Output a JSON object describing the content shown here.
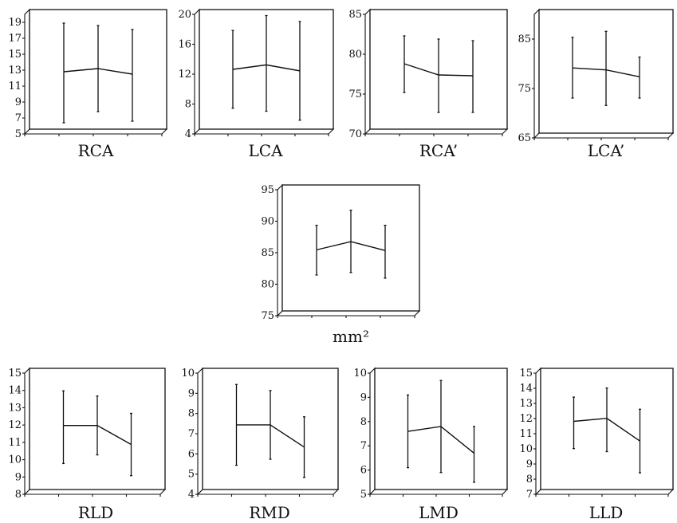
{
  "chart_data": [
    {
      "type": "line",
      "xlabel": "RCA",
      "yticks": [
        5,
        7,
        9,
        11,
        13,
        15,
        17,
        19
      ],
      "ylim": [
        5,
        20
      ],
      "x": [
        1,
        2,
        3
      ],
      "series": [
        {
          "values": [
            12.2,
            12.6,
            11.9
          ],
          "lower": [
            5.8,
            7.2,
            6.0
          ],
          "upper": [
            18.3,
            18.0,
            17.5
          ]
        }
      ]
    },
    {
      "type": "line",
      "xlabel": "LCA",
      "yticks": [
        4,
        8,
        12,
        16,
        20
      ],
      "ylim": [
        4,
        20
      ],
      "x": [
        1,
        2,
        3
      ],
      "series": [
        {
          "values": [
            12.0,
            12.6,
            11.8
          ],
          "lower": [
            6.8,
            6.4,
            5.2
          ],
          "upper": [
            17.2,
            19.2,
            18.4
          ]
        }
      ]
    },
    {
      "type": "line",
      "xlabel": "RCA’",
      "yticks": [
        70,
        75,
        80,
        85
      ],
      "ylim": [
        70,
        85
      ],
      "x": [
        1,
        2,
        3
      ],
      "series": [
        {
          "values": [
            78.2,
            76.8,
            76.7
          ],
          "lower": [
            74.6,
            72.1,
            72.1
          ],
          "upper": [
            81.7,
            81.3,
            81.1
          ]
        }
      ]
    },
    {
      "type": "line",
      "xlabel": "LCA’",
      "yticks": [
        65,
        75,
        85
      ],
      "ylim": [
        65,
        90
      ],
      "x": [
        1,
        2,
        3
      ],
      "series": [
        {
          "values": [
            78.2,
            77.8,
            76.4
          ],
          "lower": [
            72.1,
            70.6,
            72.1
          ],
          "upper": [
            84.4,
            85.6,
            80.4
          ]
        }
      ]
    },
    {
      "type": "line",
      "xlabel": "mm²",
      "yticks": [
        75,
        80,
        85,
        90,
        95
      ],
      "ylim": [
        75,
        95
      ],
      "x": [
        1,
        2,
        3
      ],
      "series": [
        {
          "values": [
            84.7,
            86.0,
            84.6
          ],
          "lower": [
            80.7,
            81.1,
            80.2
          ],
          "upper": [
            88.6,
            91.0,
            88.6
          ]
        }
      ]
    },
    {
      "type": "line",
      "xlabel": "RLD",
      "yticks": [
        8,
        9,
        10,
        11,
        12,
        13,
        14,
        15
      ],
      "ylim": [
        8,
        15
      ],
      "x": [
        1,
        2,
        3
      ],
      "series": [
        {
          "values": [
            11.7,
            11.7,
            10.6
          ],
          "lower": [
            9.5,
            10.0,
            8.8
          ],
          "upper": [
            13.7,
            13.4,
            12.4
          ]
        }
      ]
    },
    {
      "type": "line",
      "xlabel": "RMD",
      "yticks": [
        4,
        5,
        6,
        7,
        8,
        9,
        10
      ],
      "ylim": [
        4,
        10
      ],
      "x": [
        1,
        2,
        3
      ],
      "series": [
        {
          "values": [
            7.2,
            7.2,
            6.1
          ],
          "lower": [
            5.2,
            5.5,
            4.6
          ],
          "upper": [
            9.2,
            8.9,
            7.6
          ]
        }
      ]
    },
    {
      "type": "line",
      "xlabel": "LMD",
      "yticks": [
        5,
        6,
        7,
        8,
        9,
        10
      ],
      "ylim": [
        5,
        10
      ],
      "x": [
        1,
        2,
        3
      ],
      "series": [
        {
          "values": [
            7.4,
            7.6,
            6.5
          ],
          "lower": [
            5.9,
            5.7,
            5.3
          ],
          "upper": [
            8.9,
            9.5,
            7.6
          ]
        }
      ]
    },
    {
      "type": "line",
      "xlabel": "LLD",
      "yticks": [
        7,
        8,
        9,
        10,
        11,
        12,
        13,
        14,
        15
      ],
      "ylim": [
        7,
        15
      ],
      "x": [
        1,
        2,
        3
      ],
      "series": [
        {
          "values": [
            11.5,
            11.7,
            10.2
          ],
          "lower": [
            9.7,
            9.5,
            8.1
          ],
          "upper": [
            13.1,
            13.7,
            12.3
          ]
        }
      ]
    }
  ]
}
